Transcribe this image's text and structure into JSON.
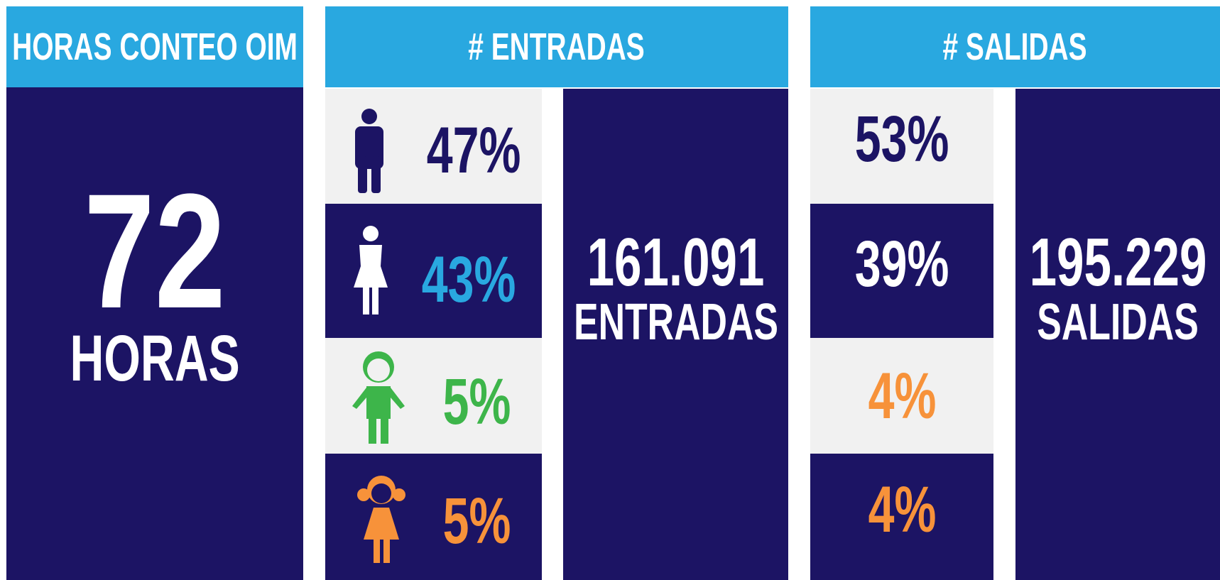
{
  "panels": [
    {
      "header": "HORAS CONTEO OIM",
      "value": "72",
      "unit": "HORAS"
    },
    {
      "header": "# ENTRADAS",
      "rows": [
        "47%",
        "43%",
        "5%",
        "5%"
      ],
      "total": "161.091",
      "unit": "ENTRADAS"
    },
    {
      "header": "# SALIDAS",
      "rows": [
        "53%",
        "39%",
        "4%",
        "4%"
      ],
      "total": "195.229",
      "unit": "SALIDAS"
    }
  ]
}
